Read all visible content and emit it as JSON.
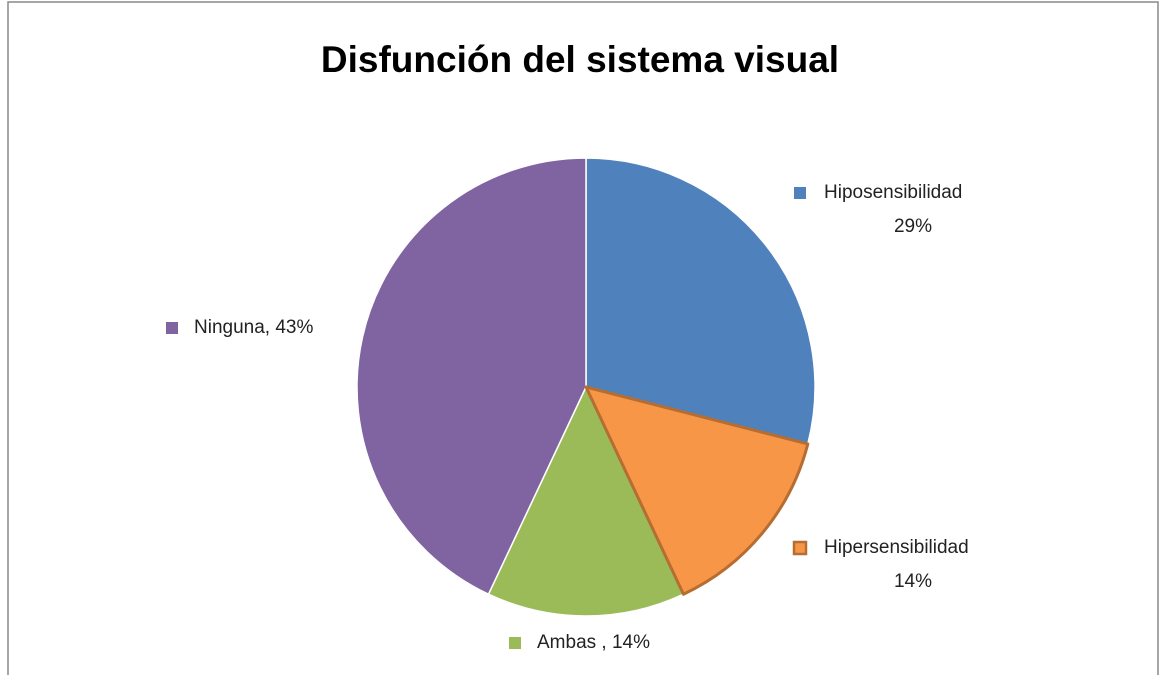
{
  "chart_data": {
    "type": "pie",
    "title": "Disfunción del sistema visual",
    "categories": [
      "Hiposensibilidad",
      "Hipersensibilidad",
      "Ambas ",
      "Ninguna"
    ],
    "values": [
      29,
      14,
      14,
      43
    ],
    "value_labels": [
      "29%",
      "14%",
      "14%",
      "43%"
    ],
    "label_separator": ", ",
    "colors": [
      "#4f81bd",
      "#f79646",
      "#9bbb59",
      "#8064a2"
    ],
    "highlight_stroke": [
      null,
      "#b66d31",
      null,
      null
    ]
  }
}
